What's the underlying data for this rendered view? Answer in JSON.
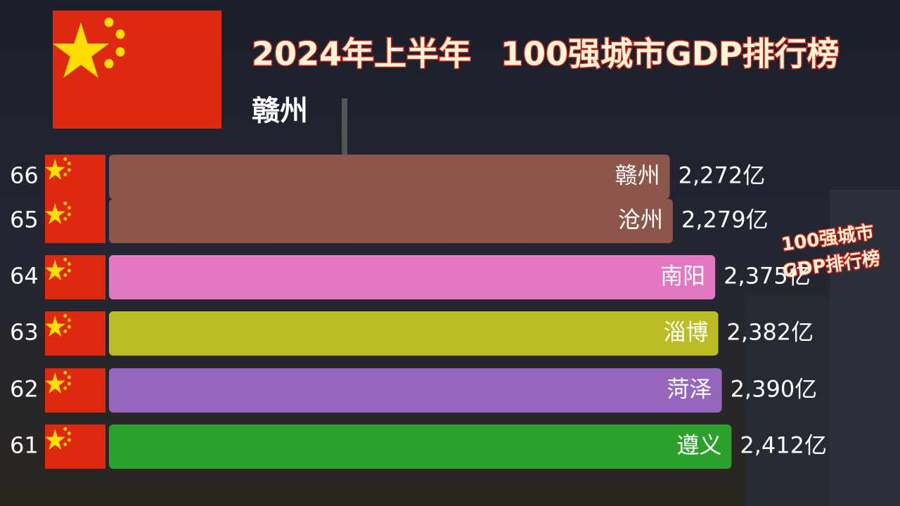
{
  "chart_data": {
    "type": "bar",
    "orientation": "horizontal",
    "title_part1": "2024年上半年",
    "title_part2": "100强城市GDP排行榜",
    "current_label": "赣州",
    "badge": [
      "100强城市",
      "GDP排行榜"
    ],
    "ranks": [
      "66",
      "65",
      "64",
      "63",
      "62",
      "61"
    ],
    "categories": [
      "赣州",
      "沧州",
      "南阳",
      "淄博",
      "菏泽",
      "遵义"
    ],
    "values": [
      2272,
      2279,
      2375,
      2382,
      2390,
      2412
    ],
    "value_labels": [
      "2,272亿",
      "2,279亿",
      "2,375亿",
      "2,382亿",
      "2,390亿",
      "2,412亿"
    ],
    "colors": [
      "#8c564b",
      "#8c564b",
      "#e377c2",
      "#bcbd22",
      "#9467bd",
      "#2ca02c"
    ],
    "xlim": [
      1000,
      2480
    ]
  }
}
